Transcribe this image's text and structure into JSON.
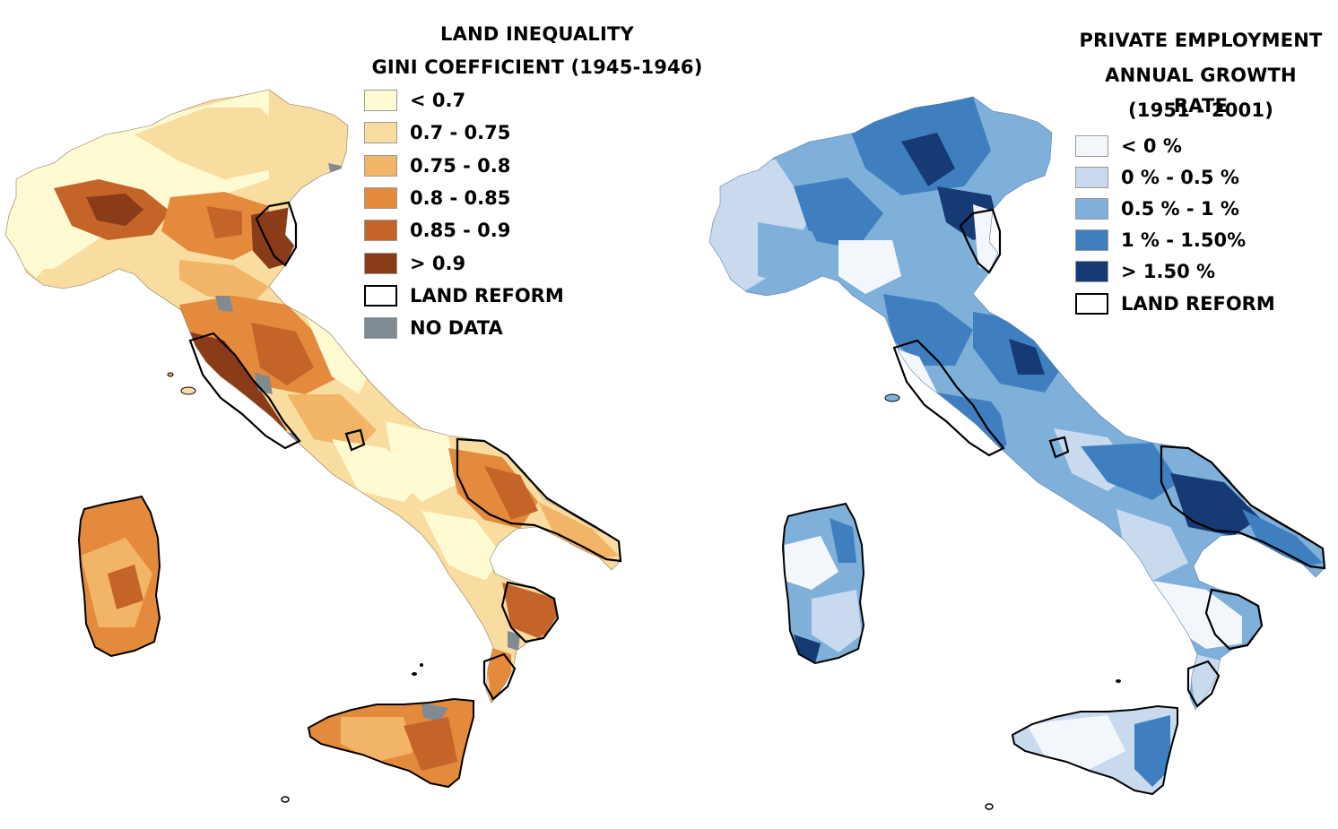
{
  "left_map": {
    "title_line1": "LAND INEQUALITY",
    "title_line2": "GINI COEFFICIENT (1945-1946)",
    "legend": [
      {
        "label": "< 0.7",
        "color": "#fefad2"
      },
      {
        "label": "0.7 - 0.75",
        "color": "#f9dca0"
      },
      {
        "label": "0.75 - 0.8",
        "color": "#f2b467"
      },
      {
        "label": "0.8 - 0.85",
        "color": "#e48a3d"
      },
      {
        "label": "0.85 - 0.9",
        "color": "#c56429"
      },
      {
        "label": "> 0.9",
        "color": "#8a3b18"
      },
      {
        "label": "LAND REFORM",
        "color": "outline"
      },
      {
        "label": "NO DATA",
        "color": "#7f8a92"
      }
    ]
  },
  "right_map": {
    "title_line1": "PRIVATE EMPLOYMENT",
    "title_line2": "ANNUAL GROWTH RATE",
    "title_line3": "(1951 - 2001)",
    "legend": [
      {
        "label": "< 0 %",
        "color": "#f3f7fc"
      },
      {
        "label": "0 % - 0.5 %",
        "color": "#c9daee"
      },
      {
        "label": "0.5 % - 1 %",
        "color": "#7eb0da"
      },
      {
        "label": "1 % - 1.50%",
        "color": "#3f7fbf"
      },
      {
        "label": "> 1.50 %",
        "color": "#163a73"
      },
      {
        "label": "LAND REFORM",
        "color": "outline"
      }
    ]
  }
}
